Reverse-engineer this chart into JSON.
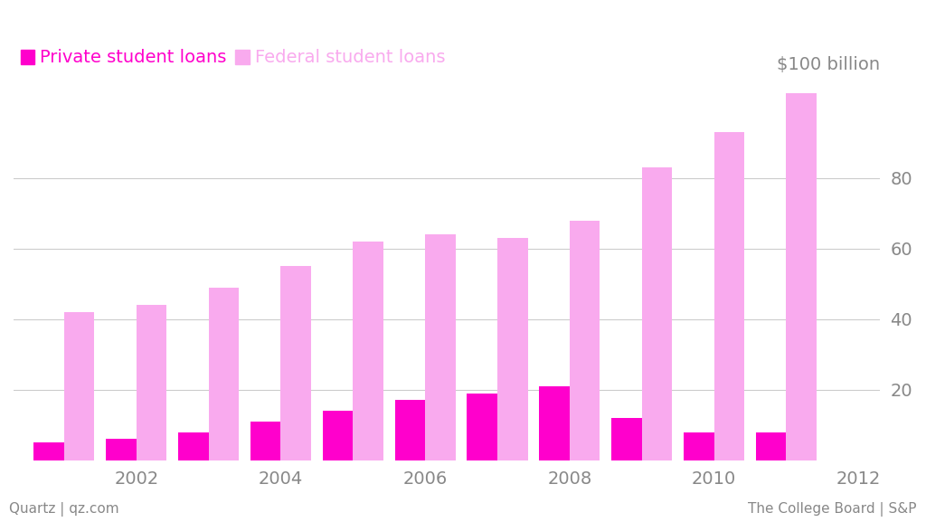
{
  "years": [
    2001,
    2002,
    2003,
    2004,
    2005,
    2006,
    2007,
    2008,
    2009,
    2010,
    2011
  ],
  "federal_loans": [
    42,
    44,
    49,
    55,
    62,
    64,
    63,
    68,
    83,
    93,
    104
  ],
  "private_loans": [
    5,
    6,
    8,
    11,
    14,
    17,
    19,
    21,
    12,
    8,
    8
  ],
  "federal_color": "#f9aaee",
  "private_color": "#ff00cc",
  "background_color": "#ffffff",
  "grid_color": "#cccccc",
  "legend_private_color": "#ff00cc",
  "legend_federal_color": "#f9aaee",
  "legend_text_color": "#ff00cc",
  "text_color": "#888888",
  "legend_private_label": "Private student loans",
  "legend_federal_label": "Federal student loans",
  "ylabel_text": "$100 billion",
  "yticks": [
    20,
    40,
    60,
    80
  ],
  "ytick_labels": [
    "20",
    "40",
    "60",
    "80"
  ],
  "ylim": [
    0,
    108
  ],
  "xtick_labels": [
    "2002",
    "2004",
    "2006",
    "2008",
    "2010",
    "2012"
  ],
  "xtick_positions": [
    2002,
    2004,
    2006,
    2008,
    2010,
    2012
  ],
  "footer_left": "Quartz | qz.com",
  "footer_right": "The College Board | S&P",
  "bar_width": 0.42,
  "title_fontsize": 14,
  "axis_fontsize": 14,
  "footer_fontsize": 11
}
